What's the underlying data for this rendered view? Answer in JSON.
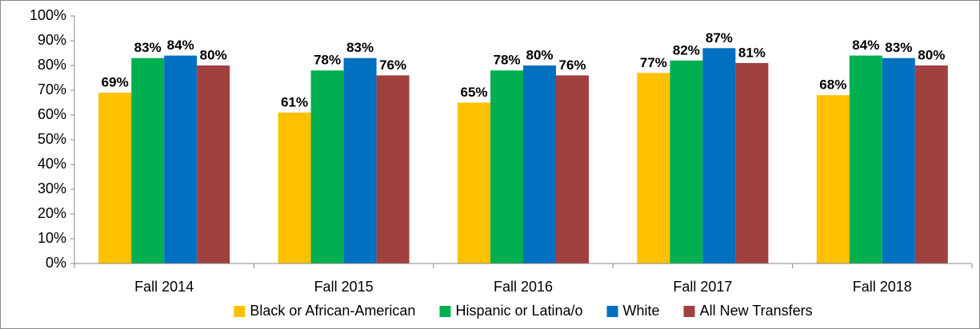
{
  "chart_data": {
    "type": "bar",
    "categories": [
      "Fall 2014",
      "Fall 2015",
      "Fall 2016",
      "Fall 2017",
      "Fall 2018"
    ],
    "series": [
      {
        "name": "Black or African-American",
        "color": "#FFC000",
        "values": [
          69,
          61,
          65,
          77,
          68
        ],
        "value_labels": [
          "69%",
          "61%",
          "65%",
          "77%",
          "68%"
        ]
      },
      {
        "name": "Hispanic or Latina/o",
        "color": "#00B050",
        "values": [
          83,
          78,
          78,
          82,
          84
        ],
        "value_labels": [
          "83%",
          "78%",
          "78%",
          "82%",
          "84%"
        ]
      },
      {
        "name": "White",
        "color": "#0070C0",
        "values": [
          84,
          83,
          80,
          87,
          83
        ],
        "value_labels": [
          "84%",
          "83%",
          "80%",
          "87%",
          "83%"
        ]
      },
      {
        "name": "All New Transfers",
        "color": "#A0413F",
        "values": [
          80,
          76,
          76,
          81,
          80
        ],
        "value_labels": [
          "80%",
          "76%",
          "76%",
          "81%",
          "80%"
        ]
      }
    ],
    "ylim": [
      0,
      100
    ],
    "yticks": [
      {
        "value": 0,
        "label": "0%"
      },
      {
        "value": 10,
        "label": "10%"
      },
      {
        "value": 20,
        "label": "20%"
      },
      {
        "value": 30,
        "label": "30%"
      },
      {
        "value": 40,
        "label": "40%"
      },
      {
        "value": 50,
        "label": "50%"
      },
      {
        "value": 60,
        "label": "60%"
      },
      {
        "value": 70,
        "label": "70%"
      },
      {
        "value": 80,
        "label": "80%"
      },
      {
        "value": 90,
        "label": "90%"
      },
      {
        "value": 100,
        "label": "100%"
      }
    ],
    "grid": false,
    "legend": "bottom"
  }
}
